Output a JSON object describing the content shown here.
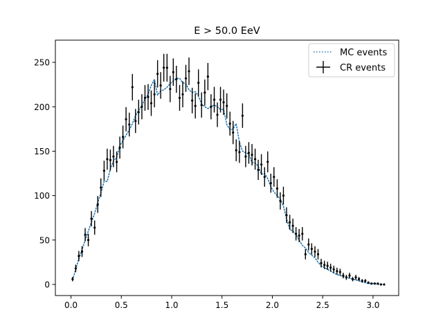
{
  "chart_data": {
    "type": "scatter",
    "title": "E > 50.0 EeV",
    "xlabel": "",
    "ylabel": "",
    "xlim": [
      -0.155,
      3.255
    ],
    "ylim": [
      -12.5,
      275
    ],
    "xticks": [
      0.0,
      0.5,
      1.0,
      1.5,
      2.0,
      2.5,
      3.0
    ],
    "xtick_labels": [
      "0.0",
      "0.5",
      "1.0",
      "1.5",
      "2.0",
      "2.5",
      "3.0"
    ],
    "yticks": [
      0,
      50,
      100,
      150,
      200,
      250
    ],
    "ytick_labels": [
      "0",
      "50",
      "100",
      "150",
      "200",
      "250"
    ],
    "grid": false,
    "legend": {
      "placement": "top-right",
      "entries": [
        "MC events",
        "CR events"
      ]
    },
    "series": [
      {
        "name": "MC events",
        "style": "dotted-line",
        "color": "#1f77b4",
        "x": [
          0.016,
          0.047,
          0.078,
          0.11,
          0.141,
          0.172,
          0.203,
          0.235,
          0.266,
          0.297,
          0.329,
          0.36,
          0.391,
          0.422,
          0.454,
          0.485,
          0.516,
          0.547,
          0.579,
          0.61,
          0.641,
          0.672,
          0.704,
          0.735,
          0.766,
          0.797,
          0.829,
          0.86,
          0.891,
          0.922,
          0.954,
          0.985,
          1.016,
          1.047,
          1.079,
          1.11,
          1.141,
          1.172,
          1.204,
          1.235,
          1.266,
          1.297,
          1.329,
          1.36,
          1.391,
          1.423,
          1.454,
          1.485,
          1.516,
          1.548,
          1.579,
          1.61,
          1.641,
          1.673,
          1.704,
          1.735,
          1.766,
          1.798,
          1.829,
          1.86,
          1.891,
          1.923,
          1.954,
          1.985,
          2.016,
          2.048,
          2.079,
          2.11,
          2.141,
          2.173,
          2.204,
          2.235,
          2.266,
          2.298,
          2.329,
          2.36,
          2.391,
          2.423,
          2.454,
          2.485,
          2.517,
          2.548,
          2.579,
          2.61,
          2.642,
          2.673,
          2.704,
          2.735,
          2.767,
          2.798,
          2.829,
          2.86,
          2.892,
          2.923,
          2.954,
          2.985,
          3.017,
          3.048,
          3.079,
          3.11
        ],
        "y": [
          5,
          17,
          29,
          39,
          50,
          60,
          70,
          80,
          92,
          103,
          116,
          116,
          130,
          139,
          143,
          156,
          162,
          168,
          174,
          181,
          190,
          196,
          201,
          209,
          214,
          224,
          231,
          213,
          218,
          219,
          222,
          226,
          229,
          232,
          232,
          227,
          226,
          219,
          216,
          217,
          212,
          203,
          200,
          198,
          200,
          202,
          200,
          197,
          197,
          180,
          174,
          175,
          181,
          160,
          150,
          148,
          147,
          137,
          137,
          133,
          124,
          125,
          119,
          110,
          104,
          100,
          96,
          88,
          74,
          62,
          60,
          56,
          50,
          44,
          41,
          36,
          33,
          30,
          25,
          21,
          19,
          17,
          15,
          13,
          11,
          10,
          9,
          8,
          7,
          6,
          5,
          4,
          3,
          2,
          1,
          1,
          1,
          0,
          0,
          0
        ]
      },
      {
        "name": "CR events",
        "style": "errorbar",
        "color": "#000000",
        "x": [
          0.016,
          0.047,
          0.078,
          0.11,
          0.141,
          0.172,
          0.203,
          0.235,
          0.266,
          0.297,
          0.329,
          0.36,
          0.391,
          0.422,
          0.454,
          0.485,
          0.516,
          0.547,
          0.579,
          0.61,
          0.641,
          0.672,
          0.704,
          0.735,
          0.766,
          0.797,
          0.829,
          0.86,
          0.891,
          0.922,
          0.954,
          0.985,
          1.016,
          1.047,
          1.079,
          1.11,
          1.141,
          1.172,
          1.204,
          1.235,
          1.266,
          1.297,
          1.329,
          1.36,
          1.391,
          1.423,
          1.454,
          1.485,
          1.516,
          1.548,
          1.579,
          1.61,
          1.641,
          1.673,
          1.704,
          1.735,
          1.766,
          1.798,
          1.829,
          1.86,
          1.891,
          1.923,
          1.954,
          1.985,
          2.016,
          2.048,
          2.079,
          2.11,
          2.141,
          2.173,
          2.204,
          2.235,
          2.266,
          2.298,
          2.329,
          2.36,
          2.391,
          2.423,
          2.454,
          2.485,
          2.517,
          2.548,
          2.579,
          2.61,
          2.642,
          2.673,
          2.704,
          2.735,
          2.767,
          2.798,
          2.829,
          2.86,
          2.892,
          2.923,
          2.954,
          2.985,
          3.017,
          3.048,
          3.079,
          3.11
        ],
        "y": [
          6,
          18,
          32,
          37,
          56,
          50,
          74,
          64,
          90,
          109,
          128,
          141,
          140,
          144,
          138,
          154,
          166,
          186,
          180,
          222,
          184,
          194,
          200,
          210,
          211,
          204,
          214,
          237,
          224,
          244,
          244,
          220,
          239,
          231,
          210,
          214,
          232,
          240,
          207,
          201,
          227,
          202,
          216,
          234,
          200,
          208,
          191,
          208,
          205,
          201,
          181,
          171,
          151,
          149,
          190,
          144,
          148,
          146,
          141,
          129,
          135,
          121,
          138,
          114,
          121,
          108,
          94,
          100,
          78,
          70,
          66,
          57,
          55,
          57,
          34,
          45,
          40,
          37,
          34,
          24,
          22,
          21,
          19,
          17,
          15,
          14,
          10,
          8,
          10,
          6,
          8,
          6,
          4,
          4,
          2,
          1,
          1,
          1,
          0,
          0
        ],
        "yerr_note": "error bars = sqrt(y)"
      }
    ]
  }
}
